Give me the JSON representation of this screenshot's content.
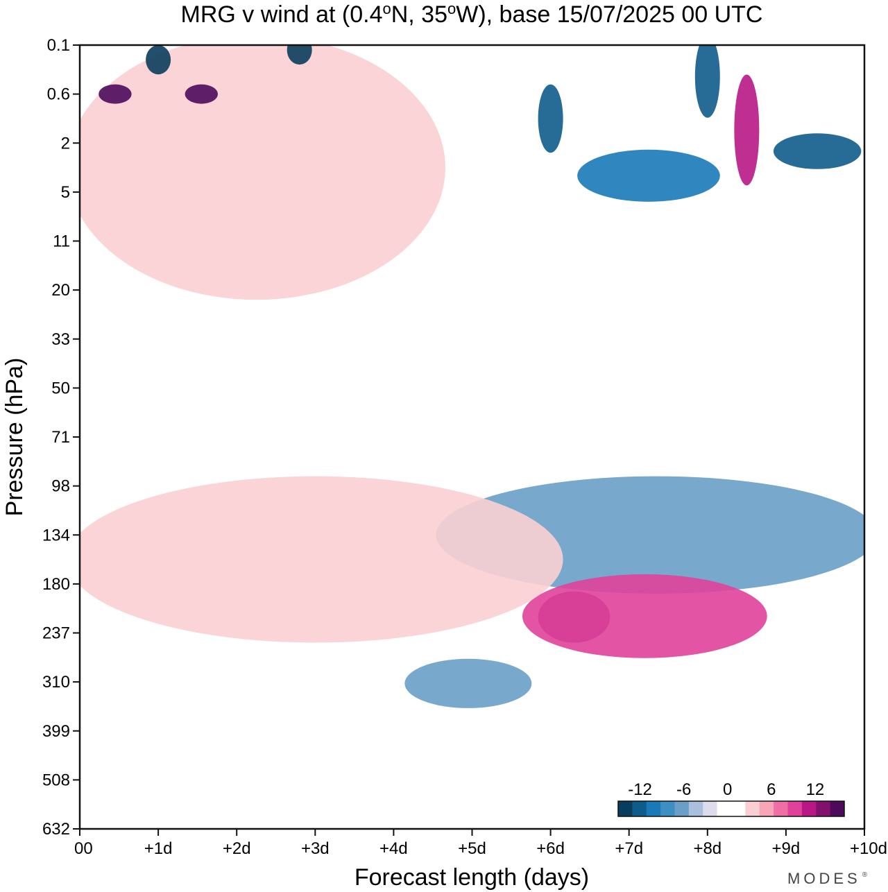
{
  "chart_data": {
    "type": "heatmap",
    "title": "MRG v wind at (0.4°N, 35°W),  base 15/07/2025  00 UTC",
    "title_parts": {
      "pre": "MRG v wind at (0.4",
      "deg": "o",
      "mid1": "N, 35",
      "mid2": "W),  base 15/07/2025  00 UTC"
    },
    "xlabel": "Forecast length (days)",
    "ylabel": "Pressure (hPa)",
    "x_ticks": [
      "00",
      "+1d",
      "+2d",
      "+3d",
      "+4d",
      "+5d",
      "+6d",
      "+7d",
      "+8d",
      "+9d",
      "+10d"
    ],
    "y_ticks": [
      "0.1",
      "0.6",
      "2",
      "5",
      "11",
      "20",
      "33",
      "50",
      "71",
      "98",
      "134",
      "180",
      "237",
      "310",
      "399",
      "508",
      "632"
    ],
    "xlim_days": [
      0,
      10
    ],
    "y_scale": "pressure levels (equally spaced labels)",
    "colorbar": {
      "tick_labels": [
        "-12",
        "-6",
        "0",
        "6",
        "12"
      ],
      "colors": [
        "#0a3d5c",
        "#0e5c8c",
        "#1a7ab8",
        "#3d8fc3",
        "#6a9fc8",
        "#a9bfdc",
        "#dcdcec",
        "#ffffff",
        "#ffffff",
        "#f9cfd3",
        "#f6a6b6",
        "#ee6fa4",
        "#e0429a",
        "#b81886",
        "#82116e",
        "#4d0a5c"
      ]
    },
    "contour_regions": [
      {
        "level": "+",
        "shade": "+1",
        "color": "#f9cfd3",
        "x_days": [
          0,
          4.5
        ],
        "y_hPa": [
          0.1,
          20
        ],
        "note": "upper positive band"
      },
      {
        "level": "+",
        "shade": "+5",
        "color": "#4d0a5c",
        "x_days": [
          0.4,
          0.5
        ],
        "y_hPa": [
          0.6,
          0.6
        ],
        "note": "core"
      },
      {
        "level": "+",
        "shade": "+5",
        "color": "#4d0a5c",
        "x_days": [
          1.5,
          1.6
        ],
        "y_hPa": [
          0.6,
          0.6
        ],
        "note": "core"
      },
      {
        "level": "-",
        "shade": "-6",
        "color": "#0a3d5c",
        "x_days": [
          1.0,
          1.0
        ],
        "y_hPa": [
          0.2,
          0.3
        ],
        "note": "core"
      },
      {
        "level": "-",
        "shade": "-6",
        "color": "#0a3d5c",
        "x_days": [
          2.8,
          2.8
        ],
        "y_hPa": [
          0.1,
          0.2
        ],
        "note": "core"
      },
      {
        "level": "-",
        "shade": "-5",
        "color": "#0e5c8c",
        "x_days": [
          6.0,
          6.0
        ],
        "y_hPa": [
          0.6,
          2
        ],
        "note": "core"
      },
      {
        "level": "-",
        "shade": "-5",
        "color": "#0e5c8c",
        "x_days": [
          8.0,
          8.0
        ],
        "y_hPa": [
          0.1,
          1
        ],
        "note": "core"
      },
      {
        "level": "-",
        "shade": "-5",
        "color": "#0e5c8c",
        "x_days": [
          9.0,
          9.8
        ],
        "y_hPa": [
          2,
          3
        ],
        "note": "core"
      },
      {
        "level": "+",
        "shade": "+4",
        "color": "#b81886",
        "x_days": [
          8.5,
          8.5
        ],
        "y_hPa": [
          0.5,
          4
        ],
        "note": "core"
      },
      {
        "level": "-",
        "shade": "-4",
        "color": "#1a7ab8",
        "x_days": [
          6.5,
          8.0
        ],
        "y_hPa": [
          3,
          5
        ],
        "note": "descending negative band"
      },
      {
        "level": "-",
        "shade": "-2",
        "color": "#6a9fc8",
        "x_days": [
          4.7,
          10
        ],
        "y_hPa": [
          98,
          180
        ],
        "note": "negative band 98-180 hPa"
      },
      {
        "level": "+",
        "shade": "+5",
        "color": "#82116e",
        "x_days": [
          6.0,
          6.6
        ],
        "y_hPa": [
          200,
          237
        ],
        "note": "core"
      },
      {
        "level": "+",
        "shade": "+3",
        "color": "#e0429a",
        "x_days": [
          5.8,
          8.6
        ],
        "y_hPa": [
          180,
          260
        ],
        "note": "positive band 180-270 hPa"
      },
      {
        "level": "+",
        "shade": "+1",
        "color": "#f9cfd3",
        "x_days": [
          0,
          6
        ],
        "y_hPa": [
          98,
          237
        ],
        "note": "broad positive region"
      },
      {
        "level": "-",
        "shade": "-2",
        "color": "#6a9fc8",
        "x_days": [
          4.3,
          5.6
        ],
        "y_hPa": [
          290,
          340
        ],
        "note": "lower negative core"
      }
    ]
  },
  "branding": {
    "text": "MODES",
    "mark": "®"
  }
}
